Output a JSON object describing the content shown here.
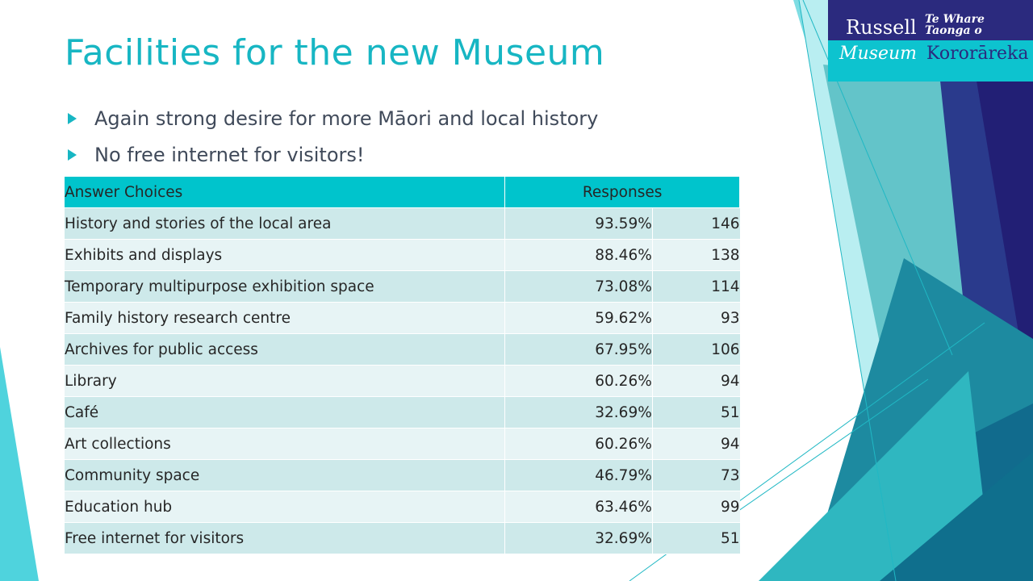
{
  "slide": {
    "title": "Facilities for the new Museum",
    "bullets": [
      "Again strong desire for more Māori and local history",
      "No free internet for visitors!"
    ]
  },
  "logo": {
    "russell": "Russell",
    "te_whare": "Te Whare",
    "taonga_o": "Taonga o",
    "museum": "Museum",
    "kororareka": "Kororāreka"
  },
  "table": {
    "headers": {
      "choices": "Answer Choices",
      "responses": "Responses"
    },
    "rows": [
      {
        "choice": "History and stories of the local area",
        "percent": "93.59%",
        "count": "146"
      },
      {
        "choice": "Exhibits and displays",
        "percent": "88.46%",
        "count": "138"
      },
      {
        "choice": "Temporary multipurpose exhibition space",
        "percent": "73.08%",
        "count": "114"
      },
      {
        "choice": "Family history research centre",
        "percent": "59.62%",
        "count": "93"
      },
      {
        "choice": "Archives for public access",
        "percent": "67.95%",
        "count": "106"
      },
      {
        "choice": "Library",
        "percent": "60.26%",
        "count": "94"
      },
      {
        "choice": "Café",
        "percent": "32.69%",
        "count": "51"
      },
      {
        "choice": "Art collections",
        "percent": "60.26%",
        "count": "94"
      },
      {
        "choice": "Community space",
        "percent": "46.79%",
        "count": "73"
      },
      {
        "choice": "Education hub",
        "percent": "63.46%",
        "count": "99"
      },
      {
        "choice": "Free internet for visitors",
        "percent": "32.69%",
        "count": "51"
      }
    ]
  },
  "colors": {
    "accent": "#17b6c3",
    "header_bg": "#00c4cc",
    "row_odd": "#cde9ea",
    "row_even": "#e7f4f5",
    "navy": "#2b2a7e"
  }
}
